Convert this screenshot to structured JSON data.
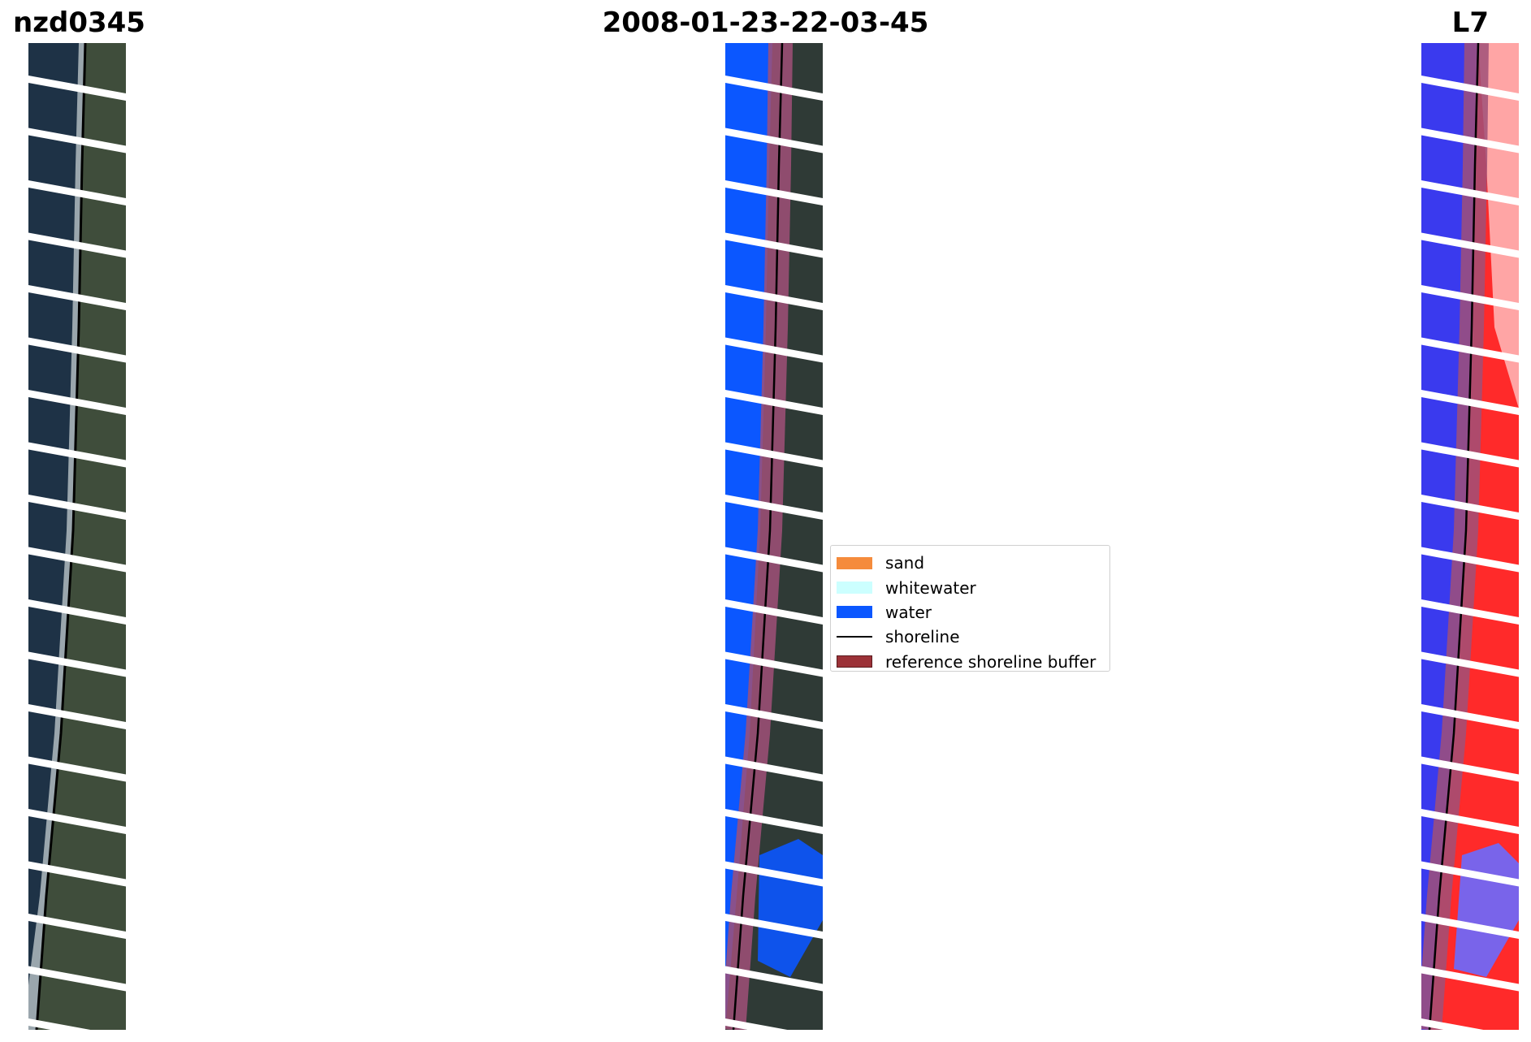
{
  "titles": {
    "left": "nzd0345",
    "center": "2008-01-23-22-03-45",
    "right": "L7"
  },
  "legend": {
    "items": [
      {
        "label": "sand",
        "kind": "patch",
        "color": "#f58b3c"
      },
      {
        "label": "whitewater",
        "kind": "patch",
        "color": "#ccffff"
      },
      {
        "label": "water",
        "kind": "patch",
        "color": "#0b57ff"
      },
      {
        "label": "shoreline",
        "kind": "line",
        "color": "#000000"
      },
      {
        "label": "reference shoreline buffer",
        "kind": "patch",
        "color": "#9c3238"
      }
    ]
  },
  "colors": {
    "satellite_sea": "#1e3246",
    "satellite_land": "#3c4a3a",
    "classified_water": "#0b57ff",
    "buffer": "#a05078",
    "mndwi_water": "#3a3aee",
    "mndwi_land": "#ff2a2a"
  }
}
